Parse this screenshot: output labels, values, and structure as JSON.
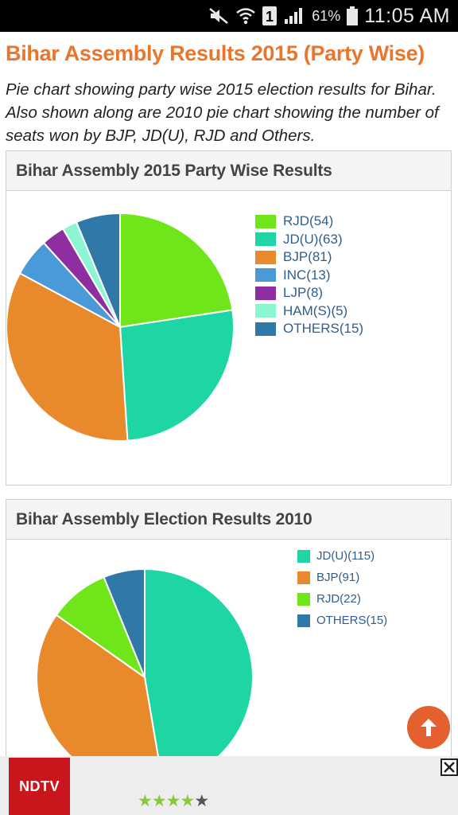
{
  "status_bar": {
    "battery": "61%",
    "time": "11:05 AM",
    "sim_badge": "1"
  },
  "page": {
    "title": "Bihar Assembly Results 2015 (Party Wise)",
    "description": "Pie chart showing party wise 2015 election results for Bihar. Also shown along are 2010 pie chart showing the number of seats won by BJP, JD(U), RJD and Others."
  },
  "chart_data": [
    {
      "type": "pie",
      "title": "Bihar Assembly 2015 Party Wise Results",
      "legend_position": "right",
      "slices": [
        {
          "label": "RJD(54)",
          "value": 54,
          "color": "#6ee619"
        },
        {
          "label": "JD(U)(63)",
          "value": 63,
          "color": "#1dd6a4"
        },
        {
          "label": "BJP(81)",
          "value": 81,
          "color": "#e8892c"
        },
        {
          "label": "INC(13)",
          "value": 13,
          "color": "#4a9ad8"
        },
        {
          "label": "LJP(8)",
          "value": 8,
          "color": "#8e2ea0"
        },
        {
          "label": "HAM(S)(5)",
          "value": 5,
          "color": "#8cf5d4"
        },
        {
          "label": "OTHERS(15)",
          "value": 15,
          "color": "#2f78a8"
        }
      ]
    },
    {
      "type": "pie",
      "title": "Bihar Assembly Election Results 2010",
      "legend_position": "right",
      "slices": [
        {
          "label": "JD(U)(115)",
          "value": 115,
          "color": "#1dd6a4"
        },
        {
          "label": "BJP(91)",
          "value": 91,
          "color": "#e8892c"
        },
        {
          "label": "RJD(22)",
          "value": 22,
          "color": "#6ee619"
        },
        {
          "label": "OTHERS(15)",
          "value": 15,
          "color": "#2f78a8"
        }
      ]
    }
  ],
  "ad": {
    "brand": "NDTV",
    "rating": 4,
    "rating_max": 5,
    "close_symbol": "✕"
  },
  "colors": {
    "accent": "#e8762c",
    "scroll_top": "#e4602e"
  },
  "icons": {
    "scroll_top": "arrow-up-icon",
    "close": "close-icon"
  }
}
